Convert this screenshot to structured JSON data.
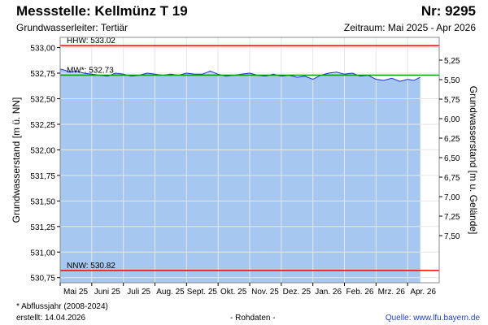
{
  "header": {
    "title": "Messstelle: Kellmünz T 19",
    "number": "Nr: 9295",
    "aquifer": "Grundwasserleiter: Tertiär",
    "period": "Zeitraum: Mai 2025 - Apr 2026"
  },
  "footer": {
    "note": "* Abflussjahr (2008-2024)",
    "created": "erstellt:  14.04.2026",
    "raw": "- Rohdaten -",
    "source": "Quelle:  www.lfu.bayern.de"
  },
  "colors": {
    "area": "#a6c8f0",
    "line": "#1f2fd6",
    "hhw": "#ff0000",
    "mw": "#009900",
    "nnw": "#ff0000"
  },
  "chart_data": {
    "type": "area",
    "ylabel": "Grundwasserstand [m ü. NN]",
    "ylabel_right": "Grundwasserstand [m u. Gelände]",
    "ylim": [
      530.7,
      533.1
    ],
    "yticks": [
      "533,00",
      "532,75",
      "532,50",
      "532,25",
      "532,00",
      "531,75",
      "531,50",
      "531,25",
      "531,00",
      "530,75"
    ],
    "yticks_right": [
      "5,25",
      "5,50",
      "5,75",
      "6,00",
      "6,25",
      "6,50",
      "6,75",
      "7,00",
      "7,25",
      "7,50"
    ],
    "xlim": [
      0,
      12
    ],
    "xticks": [
      "Mai 25",
      "Juni 25",
      "Juli 25",
      "Aug. 25",
      "Sept. 25",
      "Okt. 25",
      "Nov. 25",
      "Dez. 25",
      "Jan. 26",
      "Feb. 26",
      "Mrz. 26",
      "Apr. 26"
    ],
    "grid": true,
    "reference_lines": [
      {
        "label": "HHW: 533.02",
        "value": 533.02
      },
      {
        "label": "MW*: 532.73",
        "value": 532.73
      },
      {
        "label": "NNW: 530.82",
        "value": 530.82
      }
    ],
    "series": [
      {
        "x": [
          0,
          0.15,
          0.3,
          0.5,
          0.75,
          1.0,
          1.25,
          1.5,
          1.75,
          2.0,
          2.25,
          2.5,
          2.75,
          3.0,
          3.25,
          3.5,
          3.75,
          4.0,
          4.25,
          4.5,
          4.75,
          5.0,
          5.25,
          5.5,
          5.75,
          6.0,
          6.25,
          6.5,
          6.75,
          7.0,
          7.25,
          7.5,
          7.75,
          8.0,
          8.25,
          8.5,
          8.75,
          9.0,
          9.25,
          9.5,
          9.75,
          10.0,
          10.25,
          10.5,
          10.75,
          11.0,
          11.2,
          11.4
        ],
        "y": [
          532.79,
          532.78,
          532.76,
          532.77,
          532.75,
          532.74,
          532.73,
          532.72,
          532.75,
          532.74,
          532.72,
          532.73,
          532.75,
          532.74,
          532.73,
          532.74,
          532.73,
          532.75,
          532.74,
          532.74,
          532.77,
          532.74,
          532.72,
          532.73,
          532.74,
          532.75,
          532.73,
          532.72,
          532.74,
          532.72,
          532.73,
          532.71,
          532.72,
          532.69,
          532.73,
          532.75,
          532.76,
          532.74,
          532.75,
          532.72,
          532.73,
          532.69,
          532.68,
          532.7,
          532.67,
          532.69,
          532.68,
          532.71
        ]
      }
    ]
  }
}
